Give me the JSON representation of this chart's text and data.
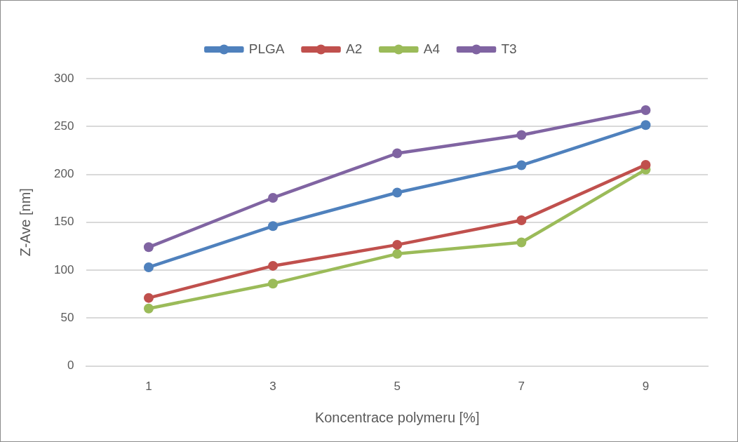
{
  "chart_data": {
    "type": "line",
    "xlabel": "Koncentrace polymeru [%]",
    "ylabel": "Z-Ave [nm]",
    "categories": [
      "1",
      "3",
      "5",
      "7",
      "9"
    ],
    "series": [
      {
        "name": "PLGA",
        "color": "#4f81bd",
        "values": [
          103,
          146,
          181,
          209.5,
          251.5
        ]
      },
      {
        "name": "A2",
        "color": "#c0504d",
        "values": [
          71,
          104.5,
          126.5,
          152,
          210
        ]
      },
      {
        "name": "A4",
        "color": "#9bbb59",
        "values": [
          60,
          86,
          117,
          129,
          205
        ]
      },
      {
        "name": "T3",
        "color": "#8064a2",
        "values": [
          124,
          175.5,
          222,
          241,
          267
        ]
      }
    ],
    "ylim": [
      0,
      300
    ],
    "yticks": [
      0,
      50,
      100,
      150,
      200,
      250,
      300
    ],
    "grid": "y",
    "legend": "top",
    "marker": "circle",
    "line_style": "solid"
  }
}
